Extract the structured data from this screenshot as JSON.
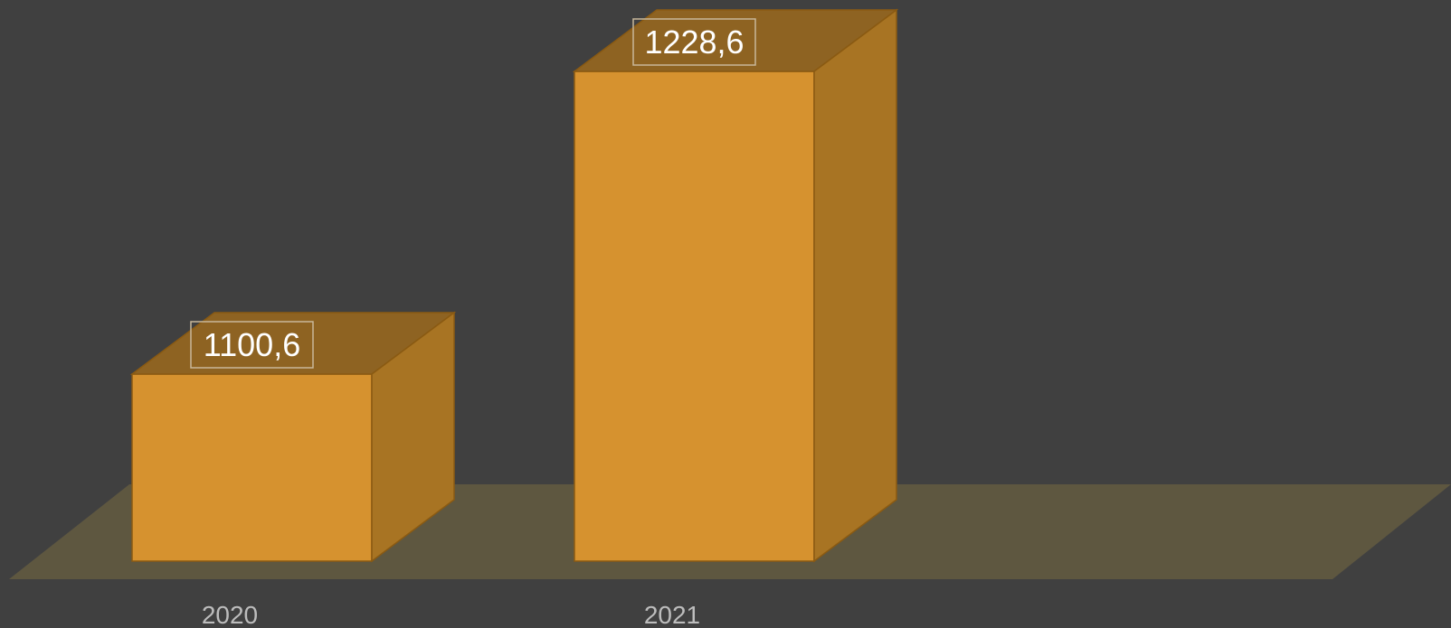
{
  "chart_data": {
    "type": "bar",
    "style": "3d",
    "categories": [
      "2020",
      "2021"
    ],
    "values": [
      1100.6,
      1228.6
    ],
    "data_labels": [
      "1100,6",
      "1228,6"
    ],
    "grid": false,
    "legend": "none"
  },
  "colors": {
    "background": "#404040",
    "floor": "#5e5740",
    "bar_front": "#d6922f",
    "bar_top": "#8e6322",
    "bar_side": "#a87423",
    "bar_edge": "#8a5a12",
    "label_border": "#c8b89a",
    "tick_text": "#bdbdbd"
  }
}
